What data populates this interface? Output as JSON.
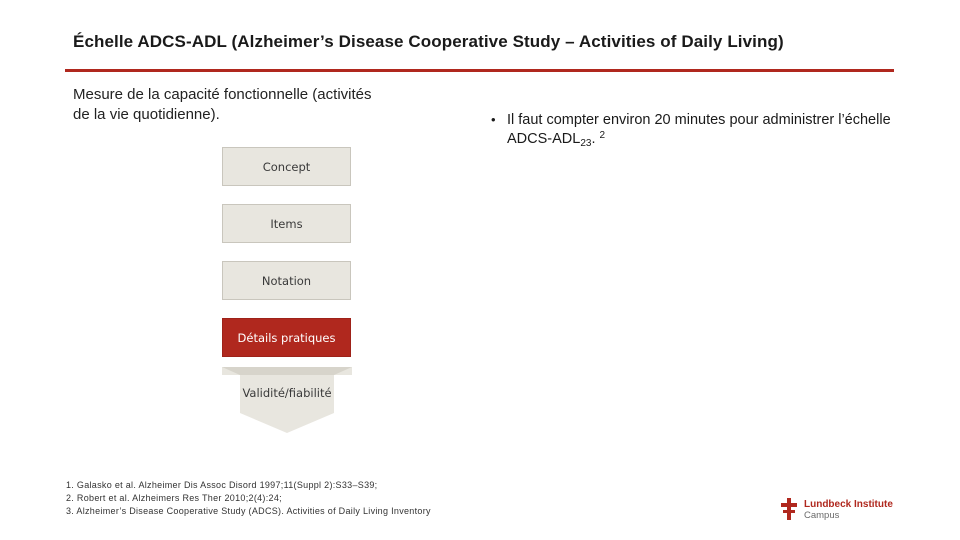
{
  "slide": {
    "title": "Échelle ADCS-ADL (Alzheimer’s Disease Cooperative Study – Activities of Daily Living)",
    "intro": "Mesure de la capacité fonctionnelle (activités de la vie quotidienne).",
    "accent_color": "#b0281e"
  },
  "bullets": [
    {
      "marker": "•",
      "text": "Il faut compter environ 20 minutes pour administrer l’échelle ADCS-ADL",
      "subscript": "23",
      "sub_after": ".",
      "superscript": "2"
    }
  ],
  "flow": {
    "steps": [
      {
        "label": "Concept",
        "active": false
      },
      {
        "label": "Items",
        "active": false
      },
      {
        "label": "Notation",
        "active": false
      },
      {
        "label": "Détails pratiques",
        "active": true
      }
    ],
    "arrow_label": "Validité/fiabilité"
  },
  "references": [
    "1. Galasko et al. Alzheimer Dis Assoc Disord 1997;11(Suppl 2):S33–S39;",
    "2. Robert et al. Alzheimers Res Ther 2010;2(4):24;",
    "3. Alzheimer’s Disease Cooperative Study (ADCS). Activities of Daily Living Inventory"
  ],
  "logo": {
    "icon": "lundbeck-cross-icon",
    "name": "Lundbeck Institute",
    "sub": "Campus"
  }
}
